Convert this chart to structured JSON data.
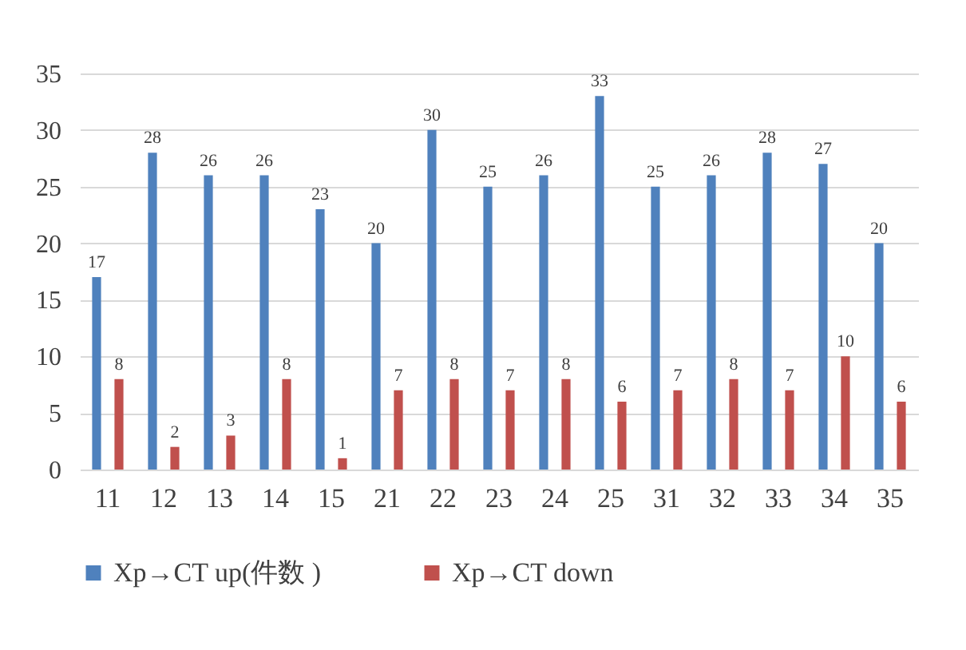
{
  "chart_data": {
    "type": "bar",
    "categories": [
      "11",
      "12",
      "13",
      "14",
      "15",
      "21",
      "22",
      "23",
      "24",
      "25",
      "31",
      "32",
      "33",
      "34",
      "35"
    ],
    "series": [
      {
        "name": "Xp→CT up(件数 )",
        "color": "#4f81bd",
        "values": [
          17,
          28,
          26,
          26,
          23,
          20,
          30,
          25,
          26,
          33,
          25,
          26,
          28,
          27,
          20
        ]
      },
      {
        "name": "Xp→CT down",
        "color": "#c0504d",
        "values": [
          8,
          2,
          3,
          8,
          1,
          7,
          8,
          7,
          8,
          6,
          7,
          8,
          7,
          10,
          6
        ]
      }
    ],
    "ylim": [
      0,
      35
    ],
    "yticks": [
      0,
      5,
      10,
      15,
      20,
      25,
      30,
      35
    ],
    "grid": "y",
    "legend": "bottom",
    "data_labels": true
  }
}
